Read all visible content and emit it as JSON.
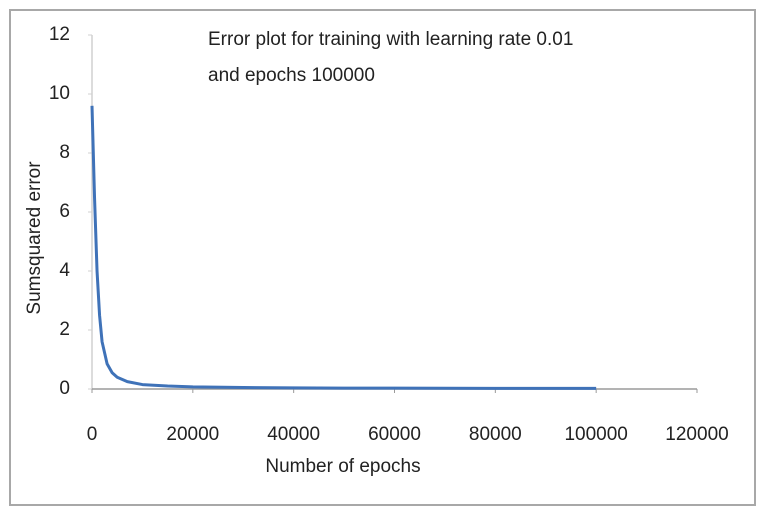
{
  "chart_data": {
    "type": "line",
    "title": [
      "Error plot for training with learning rate 0.01",
      "and epochs 100000"
    ],
    "x_label": "Number of epochs",
    "y_label": "Sumsquared error",
    "x": [
      0,
      500,
      1000,
      1500,
      2000,
      3000,
      4000,
      5000,
      7000,
      10000,
      15000,
      20000,
      30000,
      40000,
      50000,
      60000,
      70000,
      80000,
      90000,
      100000
    ],
    "series": [
      {
        "name": "Sumsquared error",
        "color": "#3f72b8",
        "values": [
          9.6,
          6.5,
          4.0,
          2.5,
          1.6,
          0.85,
          0.55,
          0.4,
          0.25,
          0.15,
          0.1,
          0.07,
          0.05,
          0.04,
          0.03,
          0.03,
          0.025,
          0.02,
          0.02,
          0.02
        ]
      }
    ],
    "xlim": [
      0,
      120000
    ],
    "xticks": [
      0,
      20000,
      40000,
      60000,
      80000,
      100000,
      120000
    ],
    "ylim": [
      0,
      12
    ],
    "yticks": [
      0,
      2,
      4,
      6,
      8,
      10,
      12
    ],
    "grid": false
  }
}
